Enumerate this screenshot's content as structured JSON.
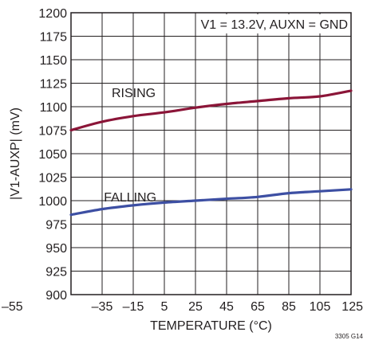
{
  "chart_data": {
    "type": "line",
    "xlabel": "TEMPERATURE (°C)",
    "ylabel": "|V1-AUXP| (mV)",
    "xlim": [
      -55,
      125
    ],
    "ylim": [
      900,
      1200
    ],
    "x_ticks": [
      -55,
      -35,
      -15,
      5,
      25,
      45,
      65,
      85,
      105,
      125
    ],
    "x_tick_labels": [
      "–55",
      "–35",
      "–15",
      "5",
      "25",
      "45",
      "65",
      "85",
      "105",
      "125"
    ],
    "y_ticks": [
      900,
      925,
      950,
      975,
      1000,
      1025,
      1050,
      1075,
      1100,
      1125,
      1150,
      1175,
      1200
    ],
    "y_tick_labels": [
      "900",
      "925",
      "950",
      "975",
      "1000",
      "1025",
      "1050",
      "1075",
      "1100",
      "1125",
      "1150",
      "1175",
      "1200"
    ],
    "grid": true,
    "annotation": "V1 = 13.2V, AUXN = GND",
    "figure_id": "3305 G14",
    "series": [
      {
        "name": "RISING",
        "color": "#8b1538",
        "x": [
          -55,
          -35,
          -15,
          5,
          25,
          45,
          65,
          85,
          105,
          125
        ],
        "y": [
          1075,
          1084,
          1090,
          1094,
          1099,
          1103,
          1106,
          1109,
          1111,
          1117
        ]
      },
      {
        "name": "FALLING",
        "color": "#3d4fa3",
        "x": [
          -55,
          -35,
          -15,
          5,
          25,
          45,
          65,
          85,
          105,
          125
        ],
        "y": [
          985,
          991,
          995,
          998,
          1000,
          1002,
          1004,
          1008,
          1010,
          1012
        ]
      }
    ]
  }
}
